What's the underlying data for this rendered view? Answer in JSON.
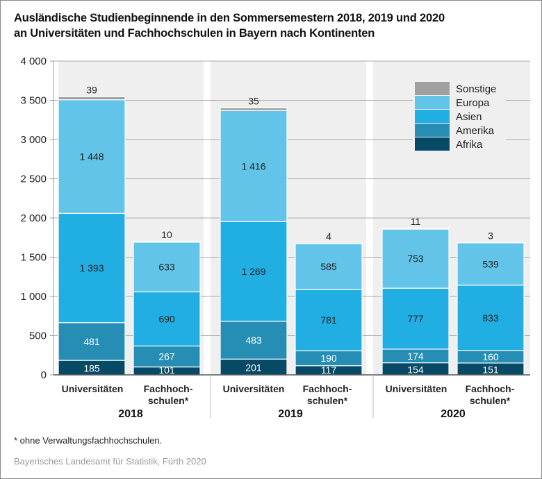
{
  "header": {
    "title_line1": "Ausländische Studienbeginnende in den Sommersemestern 2018, 2019 und 2020",
    "title_line2": "an Universitäten und Fachhochschulen in Bayern nach Kontinenten"
  },
  "footer": {
    "footnote": "*  ohne Verwaltungsfachhochschulen.",
    "source": "Bayerisches Landesamt für Statistik, Fürth 2020"
  },
  "chart_data": {
    "type": "bar",
    "stacked": true,
    "title": "Ausländische Studienbeginnende in den Sommersemestern 2018, 2019 und 2020 an Universitäten und Fachhochschulen in Bayern nach Kontinenten",
    "xlabel": "",
    "ylabel": "",
    "ylim": [
      0,
      4000
    ],
    "yticks": [
      0,
      500,
      1000,
      1500,
      2000,
      2500,
      3000,
      3500,
      4000
    ],
    "ytick_labels": [
      "0",
      "500",
      "1 000",
      "1 500",
      "2 000",
      "2 500",
      "3 000",
      "3 500",
      "4 000"
    ],
    "grid": true,
    "legend_position": "top-right",
    "groups": [
      "2018",
      "2019",
      "2020"
    ],
    "categories": [
      "Universitäten",
      "Fachhoch-|schulen*",
      "Universitäten",
      "Fachhoch-|schulen*",
      "Universitäten",
      "Fachhoch-|schulen*"
    ],
    "category_group": [
      0,
      0,
      1,
      1,
      2,
      2
    ],
    "series": [
      {
        "name": "Afrika",
        "color": "#064a66",
        "label_color": "#ffffff",
        "values": [
          185,
          101,
          201,
          117,
          154,
          151
        ]
      },
      {
        "name": "Amerika",
        "color": "#268eb5",
        "label_color": "#ffffff",
        "values": [
          481,
          267,
          483,
          190,
          174,
          160
        ]
      },
      {
        "name": "Asien",
        "color": "#21aee2",
        "label_color": "#222222",
        "values": [
          1393,
          690,
          1269,
          781,
          777,
          833
        ]
      },
      {
        "name": "Europa",
        "color": "#61c4e8",
        "label_color": "#222222",
        "values": [
          1448,
          633,
          1416,
          585,
          753,
          539
        ]
      },
      {
        "name": "Sonstige",
        "color": "#a0a0a0",
        "label_color": "#222222",
        "values": [
          39,
          10,
          35,
          4,
          11,
          3
        ]
      }
    ],
    "legend_order": [
      "Sonstige",
      "Europa",
      "Asien",
      "Amerika",
      "Afrika"
    ]
  }
}
